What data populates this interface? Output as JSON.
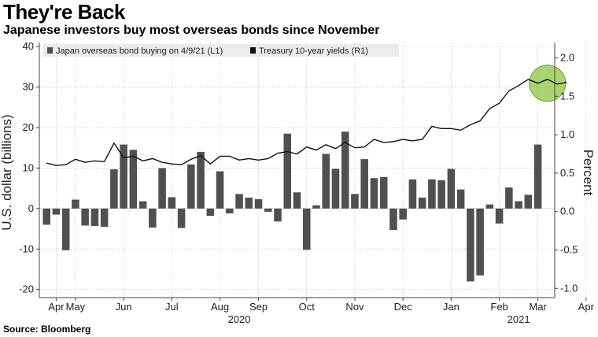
{
  "title": "They're Back",
  "subtitle": "Japanese investors buy most overseas bonds since November",
  "source": "Source: Bloomberg",
  "colors": {
    "bars": "#505050",
    "line": "#111111",
    "highlight": "#8cc63f",
    "grid": "#d0d0d0",
    "legend_bg": "#ebebeb"
  },
  "chart_data": {
    "type": "bar+line",
    "xlabel_months": [
      "Apr",
      "May",
      "Jun",
      "Jul",
      "Aug",
      "Sep",
      "Oct",
      "Nov",
      "Dec",
      "Jan",
      "Feb",
      "Mar",
      "Apr"
    ],
    "month_week_index": [
      1,
      3,
      8,
      13,
      18,
      22,
      27,
      32,
      37,
      42,
      47,
      51,
      56
    ],
    "year_labels": [
      {
        "label": "2020",
        "week_index": 20
      },
      {
        "label": "2021",
        "week_index": 49
      }
    ],
    "left_axis": {
      "label": "U.S. dollar (billions)",
      "ylim": [
        -22,
        41
      ],
      "ticks": [
        -20,
        -10,
        0,
        10,
        20,
        30,
        40
      ],
      "tick_labels": [
        "-20",
        "-10",
        "0",
        "10",
        "20",
        "30",
        "40"
      ]
    },
    "right_axis": {
      "label": "Percent",
      "ylim": [
        -1.12,
        2.2
      ],
      "ticks": [
        -1.0,
        -0.5,
        0.0,
        0.5,
        1.0,
        1.5,
        2.0
      ],
      "tick_labels": [
        "-1.0",
        "-0.5",
        "0.0",
        "0.5",
        "1.0",
        "1.5",
        "2.0"
      ]
    },
    "series": [
      {
        "name": "Japan overseas bond buying  on 4/9/21 (L1)",
        "type": "bar",
        "axis": "left",
        "values": [
          -4,
          -1.5,
          -10.3,
          2.2,
          -4.2,
          -4.3,
          -4.5,
          9.7,
          15.8,
          14.5,
          1.8,
          -4.7,
          10,
          2.8,
          -4.8,
          10.9,
          14,
          -1.8,
          9.2,
          -1.2,
          3.6,
          2.7,
          2.3,
          -0.8,
          -3.2,
          18.5,
          4,
          -10.2,
          0.8,
          13.5,
          9.8,
          19,
          3.6,
          12.2,
          7.5,
          7.8,
          -5.3,
          -2.7,
          7.2,
          2.7,
          7.2,
          7,
          9.8,
          4.7,
          -18,
          -16.5,
          1,
          -3.7,
          5.2,
          1.8,
          3.4,
          15.8
        ]
      },
      {
        "name": "Treasury 10-year yields (R1)",
        "type": "line",
        "axis": "right",
        "values": [
          0.63,
          0.6,
          0.61,
          0.68,
          0.64,
          0.66,
          0.65,
          0.89,
          0.7,
          0.72,
          0.66,
          0.69,
          0.64,
          0.62,
          0.61,
          0.68,
          0.73,
          0.62,
          0.72,
          0.72,
          0.67,
          0.69,
          0.67,
          0.69,
          0.76,
          0.78,
          0.75,
          0.84,
          0.8,
          0.87,
          0.82,
          0.9,
          0.83,
          0.84,
          0.94,
          0.9,
          0.91,
          0.94,
          0.92,
          0.94,
          1.11,
          1.08,
          1.08,
          1.06,
          1.13,
          1.18,
          1.34,
          1.41,
          1.57,
          1.64,
          1.72,
          1.67,
          1.72,
          1.66,
          1.68
        ]
      }
    ],
    "annotation": {
      "type": "circle-highlight",
      "series": "Treasury 10-year yields (R1)",
      "week_index": 52,
      "value": 1.67
    },
    "grid": true,
    "legend_position": "top-left"
  }
}
